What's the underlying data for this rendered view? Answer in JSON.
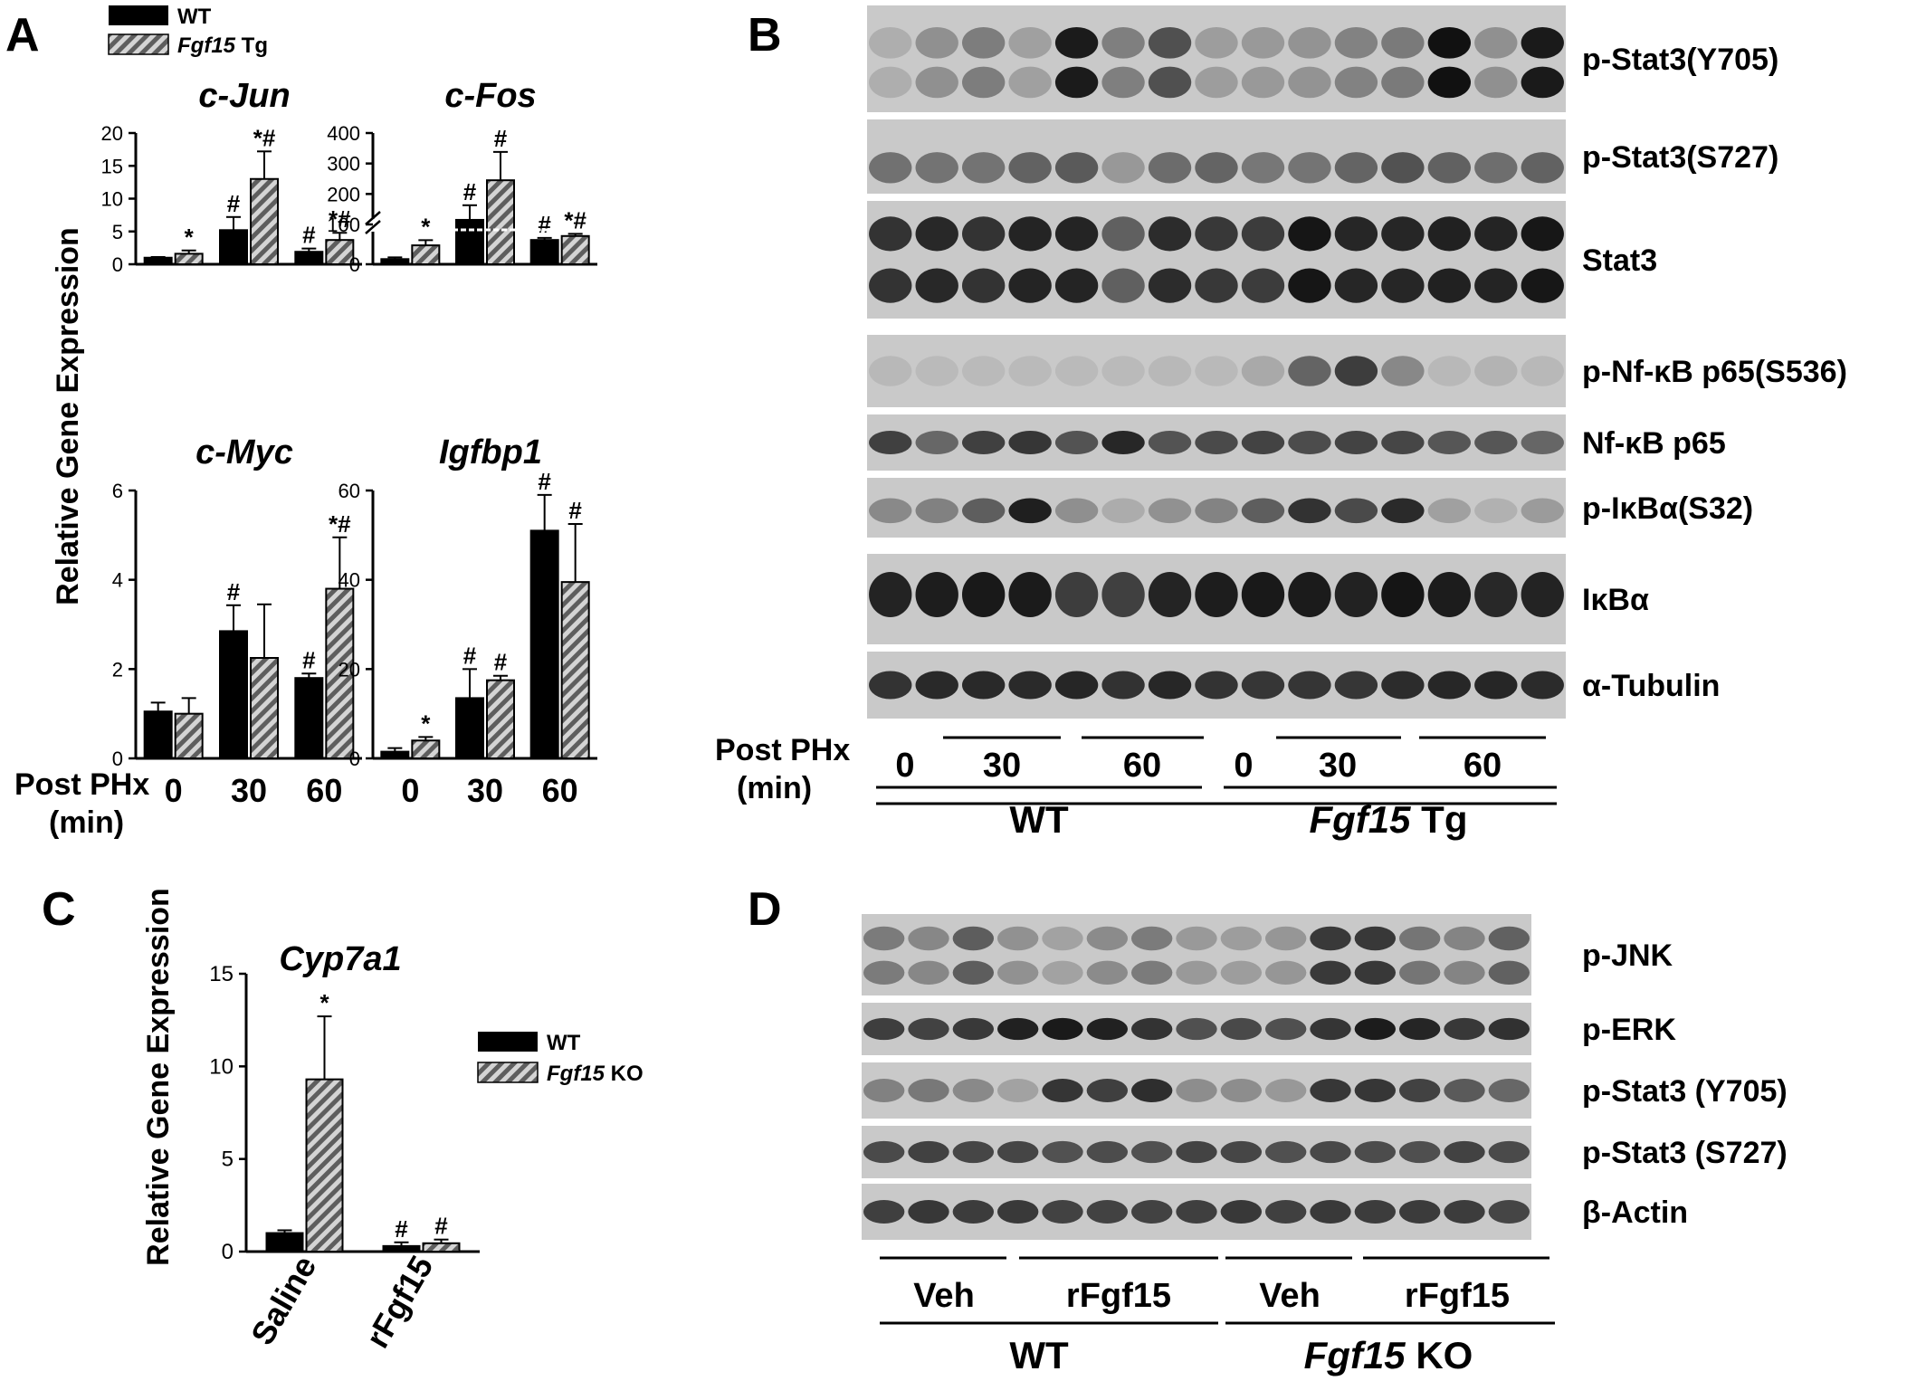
{
  "panels": {
    "A": "A",
    "B": "B",
    "C": "C",
    "D": "D"
  },
  "colors": {
    "wt": "#000000",
    "tg": "#9a9a9a",
    "blot_bg": "#cfcfcf",
    "band": "#111111"
  },
  "panel_a": {
    "legend": [
      {
        "name": "WT",
        "pattern": "solid"
      },
      {
        "name": "Fgf15",
        "suffix": " Tg",
        "pattern": "hatched"
      }
    ],
    "ylabel": "Relative Gene Expression",
    "xlabel_lines": [
      "Post PHx",
      "(min)"
    ]
  },
  "panel_c": {
    "legend": [
      {
        "name": "WT",
        "pattern": "solid"
      },
      {
        "name": "Fgf15",
        "suffix": " KO",
        "pattern": "hatched"
      }
    ],
    "ylabel": "Relative Gene Expression"
  },
  "chart_data": [
    {
      "type": "bar",
      "panel": "A",
      "title": "c-Jun",
      "categories": [
        "0",
        "30",
        "60"
      ],
      "series": [
        {
          "name": "WT",
          "values": [
            1.0,
            5.2,
            1.9
          ],
          "errors": [
            0.1,
            2.0,
            0.5
          ],
          "marks": [
            "",
            "#",
            "#"
          ]
        },
        {
          "name": "Fgf15 Tg",
          "values": [
            1.6,
            13.0,
            3.7
          ],
          "errors": [
            0.5,
            4.2,
            1.1
          ],
          "marks": [
            "*",
            "*#",
            "*#"
          ]
        }
      ],
      "ylim": [
        0,
        20
      ],
      "yticks": [
        0,
        5,
        10,
        15,
        20
      ]
    },
    {
      "type": "bar",
      "panel": "A",
      "title": "c-Fos",
      "categories": [
        "0",
        "30",
        "60"
      ],
      "series": [
        {
          "name": "WT",
          "values": [
            6,
            115,
            49
          ],
          "errors": [
            2,
            48,
            7
          ],
          "marks": [
            "",
            "#",
            "#"
          ]
        },
        {
          "name": "Fgf15 Tg",
          "values": [
            22,
            245,
            62
          ],
          "errors": [
            6,
            93,
            7
          ],
          "marks": [
            "*",
            "#",
            "*#"
          ]
        }
      ],
      "ylim": [
        0,
        400
      ],
      "yticks": [
        0,
        100,
        200,
        300,
        400
      ],
      "axis_break": true
    },
    {
      "type": "bar",
      "panel": "A",
      "title": "c-Myc",
      "categories": [
        "0",
        "30",
        "60"
      ],
      "series": [
        {
          "name": "WT",
          "values": [
            1.05,
            2.85,
            1.8
          ],
          "errors": [
            0.2,
            0.58,
            0.1
          ],
          "marks": [
            "",
            "#",
            "#"
          ]
        },
        {
          "name": "Fgf15 Tg",
          "values": [
            1.0,
            2.25,
            3.8
          ],
          "errors": [
            0.35,
            1.2,
            1.15
          ],
          "marks": [
            "",
            "",
            "*#"
          ]
        }
      ],
      "ylim": [
        0,
        6
      ],
      "yticks": [
        0,
        2,
        4,
        6
      ]
    },
    {
      "type": "bar",
      "panel": "A",
      "title": "Igfbp1",
      "categories": [
        "0",
        "30",
        "60"
      ],
      "series": [
        {
          "name": "WT",
          "values": [
            1.5,
            13.5,
            51
          ],
          "errors": [
            0.8,
            6.5,
            8
          ],
          "marks": [
            "",
            "#",
            "#"
          ]
        },
        {
          "name": "Fgf15 Tg",
          "values": [
            4.0,
            17.5,
            39.5
          ],
          "errors": [
            0.8,
            1,
            13
          ],
          "marks": [
            "*",
            "#",
            "#"
          ]
        }
      ],
      "ylim": [
        0,
        60
      ],
      "yticks": [
        0,
        20,
        40,
        60
      ]
    },
    {
      "type": "bar",
      "panel": "C",
      "title": "Cyp7a1",
      "categories": [
        "Saline",
        "rFgf15"
      ],
      "series": [
        {
          "name": "WT",
          "values": [
            1.0,
            0.3
          ],
          "errors": [
            0.15,
            0.2
          ],
          "marks": [
            "",
            "#"
          ]
        },
        {
          "name": "Fgf15 KO",
          "values": [
            9.3,
            0.45
          ],
          "errors": [
            3.4,
            0.2
          ],
          "marks": [
            "*",
            "#"
          ]
        }
      ],
      "ylim": [
        0,
        15
      ],
      "yticks": [
        0,
        5,
        10,
        15
      ]
    }
  ],
  "panel_b": {
    "rows": [
      "p-Stat3(Y705)",
      "p-Stat3(S727)",
      "Stat3",
      "p-Nf-κB p65(S536)",
      "Nf-κB p65",
      "p-IκBα(S32)",
      "IκBα",
      "α-Tubulin"
    ],
    "time_label_lines": [
      "Post PHx",
      "(min)"
    ],
    "times": [
      "0",
      "30",
      "60",
      "0",
      "30",
      "60"
    ],
    "groups": [
      {
        "name": "WT",
        "suffix": ""
      },
      {
        "name": "Fgf15",
        "suffix": " Tg"
      }
    ],
    "lanes": 15
  },
  "panel_d": {
    "rows": [
      "p-JNK",
      "p-ERK",
      "p-Stat3 (Y705)",
      "p-Stat3 (S727)",
      "β-Actin"
    ],
    "treatments": [
      "Veh",
      "rFgf15",
      "Veh",
      "rFgf15"
    ],
    "groups": [
      {
        "name": "WT",
        "suffix": ""
      },
      {
        "name": "Fgf15",
        "suffix": " KO"
      }
    ],
    "lanes": 15
  }
}
